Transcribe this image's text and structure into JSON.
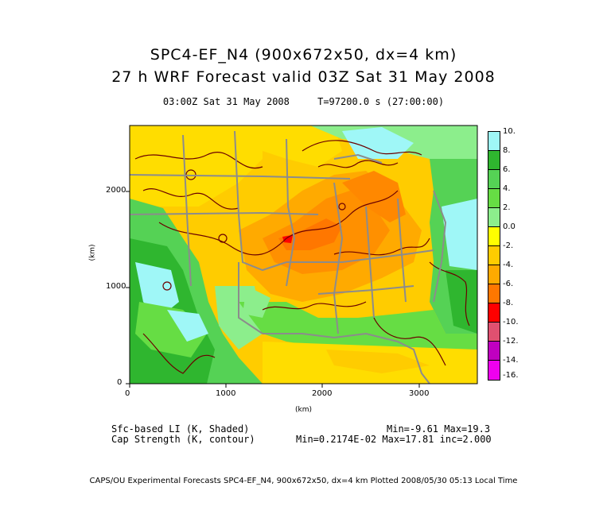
{
  "titles": {
    "line1": "SPC4-EF_N4 (900x672x50, dx=4 km)",
    "line2": "27 h WRF Forecast valid 03Z Sat 31 May 2008",
    "time_label": "03:00Z Sat 31 May 2008",
    "t_label": "T=97200.0 s (27:00:00)"
  },
  "axes": {
    "xlabel": "(km)",
    "ylabel": "(km)",
    "x_ticks": [
      "0",
      "1000",
      "2000",
      "3000"
    ],
    "y_ticks": [
      "0",
      "1000",
      "2000"
    ],
    "x_range_km": [
      0,
      3600
    ],
    "y_range_km": [
      0,
      2688
    ]
  },
  "colorbar": {
    "labels": [
      "10.",
      "8.",
      "6.",
      "4.",
      "2.",
      "0.0",
      "-2.",
      "-4.",
      "-6.",
      "-8.",
      "-10.",
      "-12.",
      "-14.",
      "-16."
    ],
    "colors": [
      "#9ff7f7",
      "#2fb62f",
      "#55d255",
      "#66dd44",
      "#8cee8c",
      "#ffff00",
      "#ffcc00",
      "#ffaa00",
      "#ff7700",
      "#ff0000",
      "#e05070",
      "#c000c0",
      "#ee00ee"
    ]
  },
  "legend": {
    "shaded_label": "Sfc-based LI (K, Shaded)",
    "shaded_stats": "Min=-9.61 Max=19.3",
    "contour_label": "Cap Strength (K, contour)",
    "contour_stats": "Min=0.2174E-02 Max=17.81 inc=2.000"
  },
  "credit": "CAPS/OU Experimental Forecasts  SPC4-EF_N4, 900x672x50, dx=4 km  Plotted 2008/05/30 05:13 Local Time",
  "map_colors": {
    "boundary": "#8c8c8c",
    "contour": "#6b0000",
    "frame": "#000000"
  }
}
